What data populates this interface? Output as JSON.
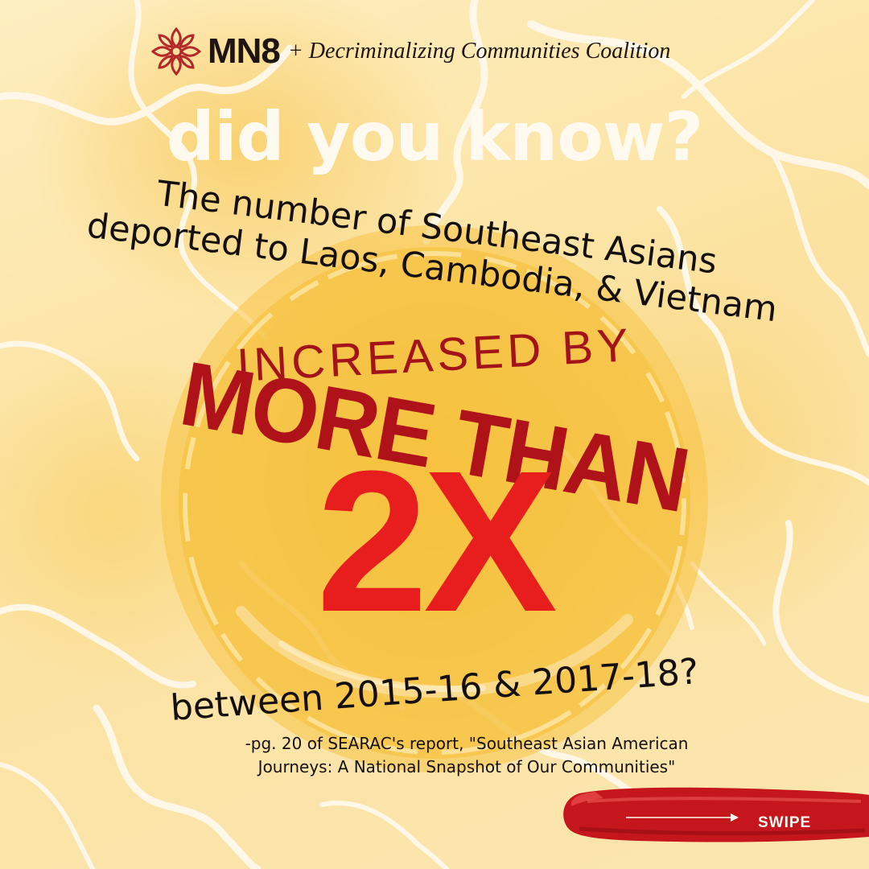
{
  "logo": {
    "brand": "MN8",
    "partner": "+ Decriminalizing Communities Coalition",
    "icon": "lotus-flower-icon"
  },
  "headline": "did you know?",
  "statement": {
    "line1": "The number of Southeast Asians",
    "line2": "deported to Laos, Cambodia, & Vietnam",
    "increased": "INCREASED BY",
    "more_than": "MORE THAN",
    "multiplier": "2X",
    "period": "between 2015-16 & 2017-18?"
  },
  "citation": {
    "line1": "-pg. 20 of SEARAC's report, \"Southeast Asian American",
    "line2": "Journeys: A National Snapshot of Our Communities\""
  },
  "swipe": {
    "label": "SWIPE",
    "icon": "arrow-right-icon"
  },
  "colors": {
    "background": "#fbe6a6",
    "circle": "#f7c948",
    "headline": "#fffaf0",
    "dark_red": "#b0121a",
    "bright_red": "#e81e1e",
    "logo_red": "#b5282a"
  }
}
